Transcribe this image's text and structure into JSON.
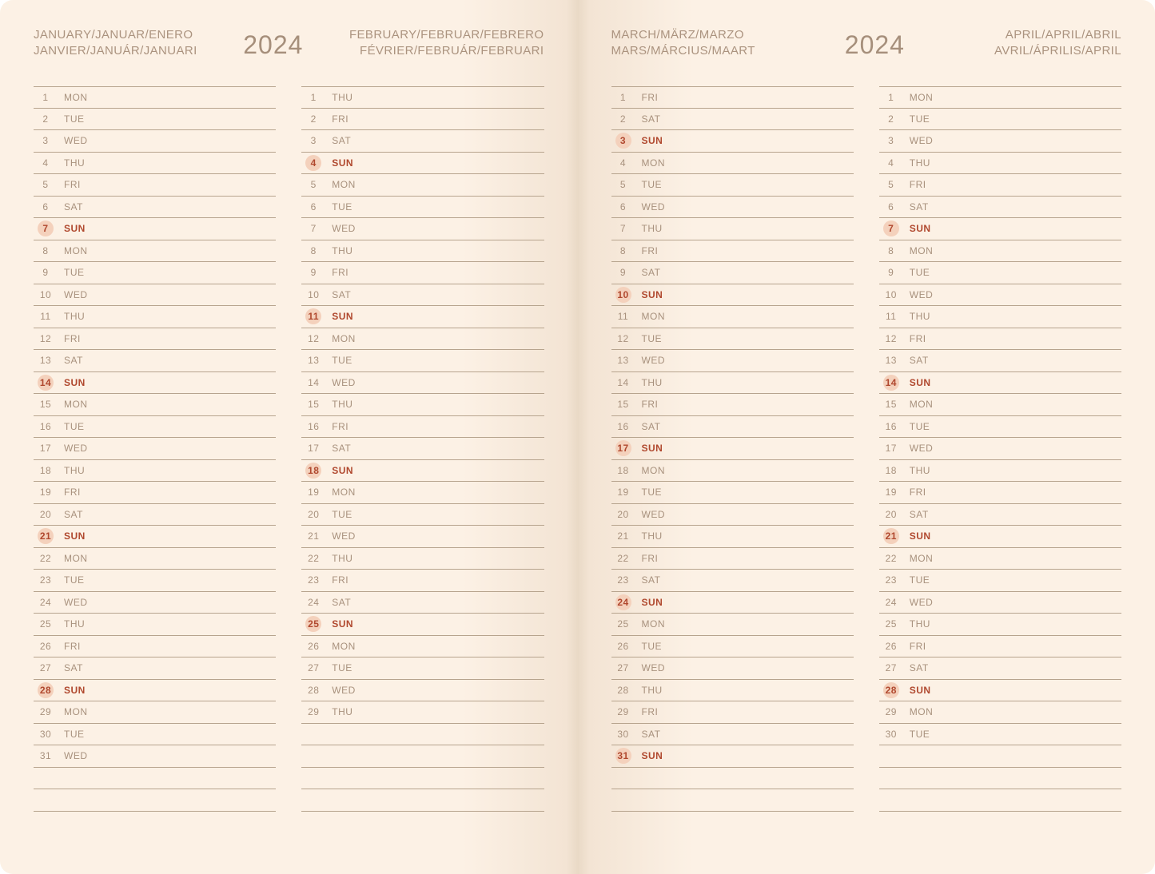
{
  "year": "2024",
  "colors": {
    "page_bg": "#fcf1e5",
    "text_muted": "#a8917d",
    "header_text": "#ab937f",
    "rule": "#b7a48e",
    "sunday_text": "#b0482e",
    "sunday_circle": "#f4d1bc"
  },
  "layout": {
    "rows_per_column": 33
  },
  "pages": [
    {
      "side": "left",
      "header_left": [
        "JANUARY/JANUAR/ENERO",
        "JANVIER/JANUÁR/JANUARI"
      ],
      "header_right": [
        "FEBRUARY/FEBRUAR/FEBRERO",
        "FÉVRIER/FEBRUÁR/FEBRUARI"
      ],
      "columns": [
        {
          "month": "january",
          "days": [
            {
              "n": 1,
              "d": "MON"
            },
            {
              "n": 2,
              "d": "TUE"
            },
            {
              "n": 3,
              "d": "WED"
            },
            {
              "n": 4,
              "d": "THU"
            },
            {
              "n": 5,
              "d": "FRI"
            },
            {
              "n": 6,
              "d": "SAT"
            },
            {
              "n": 7,
              "d": "SUN",
              "s": true
            },
            {
              "n": 8,
              "d": "MON"
            },
            {
              "n": 9,
              "d": "TUE"
            },
            {
              "n": 10,
              "d": "WED"
            },
            {
              "n": 11,
              "d": "THU"
            },
            {
              "n": 12,
              "d": "FRI"
            },
            {
              "n": 13,
              "d": "SAT"
            },
            {
              "n": 14,
              "d": "SUN",
              "s": true
            },
            {
              "n": 15,
              "d": "MON"
            },
            {
              "n": 16,
              "d": "TUE"
            },
            {
              "n": 17,
              "d": "WED"
            },
            {
              "n": 18,
              "d": "THU"
            },
            {
              "n": 19,
              "d": "FRI"
            },
            {
              "n": 20,
              "d": "SAT"
            },
            {
              "n": 21,
              "d": "SUN",
              "s": true
            },
            {
              "n": 22,
              "d": "MON"
            },
            {
              "n": 23,
              "d": "TUE"
            },
            {
              "n": 24,
              "d": "WED"
            },
            {
              "n": 25,
              "d": "THU"
            },
            {
              "n": 26,
              "d": "FRI"
            },
            {
              "n": 27,
              "d": "SAT"
            },
            {
              "n": 28,
              "d": "SUN",
              "s": true
            },
            {
              "n": 29,
              "d": "MON"
            },
            {
              "n": 30,
              "d": "TUE"
            },
            {
              "n": 31,
              "d": "WED"
            }
          ]
        },
        {
          "month": "february",
          "days": [
            {
              "n": 1,
              "d": "THU"
            },
            {
              "n": 2,
              "d": "FRI"
            },
            {
              "n": 3,
              "d": "SAT"
            },
            {
              "n": 4,
              "d": "SUN",
              "s": true
            },
            {
              "n": 5,
              "d": "MON"
            },
            {
              "n": 6,
              "d": "TUE"
            },
            {
              "n": 7,
              "d": "WED"
            },
            {
              "n": 8,
              "d": "THU"
            },
            {
              "n": 9,
              "d": "FRI"
            },
            {
              "n": 10,
              "d": "SAT"
            },
            {
              "n": 11,
              "d": "SUN",
              "s": true
            },
            {
              "n": 12,
              "d": "MON"
            },
            {
              "n": 13,
              "d": "TUE"
            },
            {
              "n": 14,
              "d": "WED"
            },
            {
              "n": 15,
              "d": "THU"
            },
            {
              "n": 16,
              "d": "FRI"
            },
            {
              "n": 17,
              "d": "SAT"
            },
            {
              "n": 18,
              "d": "SUN",
              "s": true
            },
            {
              "n": 19,
              "d": "MON"
            },
            {
              "n": 20,
              "d": "TUE"
            },
            {
              "n": 21,
              "d": "WED"
            },
            {
              "n": 22,
              "d": "THU"
            },
            {
              "n": 23,
              "d": "FRI"
            },
            {
              "n": 24,
              "d": "SAT"
            },
            {
              "n": 25,
              "d": "SUN",
              "s": true
            },
            {
              "n": 26,
              "d": "MON"
            },
            {
              "n": 27,
              "d": "TUE"
            },
            {
              "n": 28,
              "d": "WED"
            },
            {
              "n": 29,
              "d": "THU"
            }
          ]
        }
      ]
    },
    {
      "side": "right",
      "header_left": [
        "MARCH/MÄRZ/MARZO",
        "MARS/MÁRCIUS/MAART"
      ],
      "header_right": [
        "APRIL/APRIL/ABRIL",
        "AVRIL/ÁPRILIS/APRIL"
      ],
      "columns": [
        {
          "month": "march",
          "days": [
            {
              "n": 1,
              "d": "FRI"
            },
            {
              "n": 2,
              "d": "SAT"
            },
            {
              "n": 3,
              "d": "SUN",
              "s": true
            },
            {
              "n": 4,
              "d": "MON"
            },
            {
              "n": 5,
              "d": "TUE"
            },
            {
              "n": 6,
              "d": "WED"
            },
            {
              "n": 7,
              "d": "THU"
            },
            {
              "n": 8,
              "d": "FRI"
            },
            {
              "n": 9,
              "d": "SAT"
            },
            {
              "n": 10,
              "d": "SUN",
              "s": true
            },
            {
              "n": 11,
              "d": "MON"
            },
            {
              "n": 12,
              "d": "TUE"
            },
            {
              "n": 13,
              "d": "WED"
            },
            {
              "n": 14,
              "d": "THU"
            },
            {
              "n": 15,
              "d": "FRI"
            },
            {
              "n": 16,
              "d": "SAT"
            },
            {
              "n": 17,
              "d": "SUN",
              "s": true
            },
            {
              "n": 18,
              "d": "MON"
            },
            {
              "n": 19,
              "d": "TUE"
            },
            {
              "n": 20,
              "d": "WED"
            },
            {
              "n": 21,
              "d": "THU"
            },
            {
              "n": 22,
              "d": "FRI"
            },
            {
              "n": 23,
              "d": "SAT"
            },
            {
              "n": 24,
              "d": "SUN",
              "s": true
            },
            {
              "n": 25,
              "d": "MON"
            },
            {
              "n": 26,
              "d": "TUE"
            },
            {
              "n": 27,
              "d": "WED"
            },
            {
              "n": 28,
              "d": "THU"
            },
            {
              "n": 29,
              "d": "FRI"
            },
            {
              "n": 30,
              "d": "SAT"
            },
            {
              "n": 31,
              "d": "SUN",
              "s": true
            }
          ]
        },
        {
          "month": "april",
          "days": [
            {
              "n": 1,
              "d": "MON"
            },
            {
              "n": 2,
              "d": "TUE"
            },
            {
              "n": 3,
              "d": "WED"
            },
            {
              "n": 4,
              "d": "THU"
            },
            {
              "n": 5,
              "d": "FRI"
            },
            {
              "n": 6,
              "d": "SAT"
            },
            {
              "n": 7,
              "d": "SUN",
              "s": true
            },
            {
              "n": 8,
              "d": "MON"
            },
            {
              "n": 9,
              "d": "TUE"
            },
            {
              "n": 10,
              "d": "WED"
            },
            {
              "n": 11,
              "d": "THU"
            },
            {
              "n": 12,
              "d": "FRI"
            },
            {
              "n": 13,
              "d": "SAT"
            },
            {
              "n": 14,
              "d": "SUN",
              "s": true
            },
            {
              "n": 15,
              "d": "MON"
            },
            {
              "n": 16,
              "d": "TUE"
            },
            {
              "n": 17,
              "d": "WED"
            },
            {
              "n": 18,
              "d": "THU"
            },
            {
              "n": 19,
              "d": "FRI"
            },
            {
              "n": 20,
              "d": "SAT"
            },
            {
              "n": 21,
              "d": "SUN",
              "s": true
            },
            {
              "n": 22,
              "d": "MON"
            },
            {
              "n": 23,
              "d": "TUE"
            },
            {
              "n": 24,
              "d": "WED"
            },
            {
              "n": 25,
              "d": "THU"
            },
            {
              "n": 26,
              "d": "FRI"
            },
            {
              "n": 27,
              "d": "SAT"
            },
            {
              "n": 28,
              "d": "SUN",
              "s": true
            },
            {
              "n": 29,
              "d": "MON"
            },
            {
              "n": 30,
              "d": "TUE"
            }
          ]
        }
      ]
    }
  ]
}
